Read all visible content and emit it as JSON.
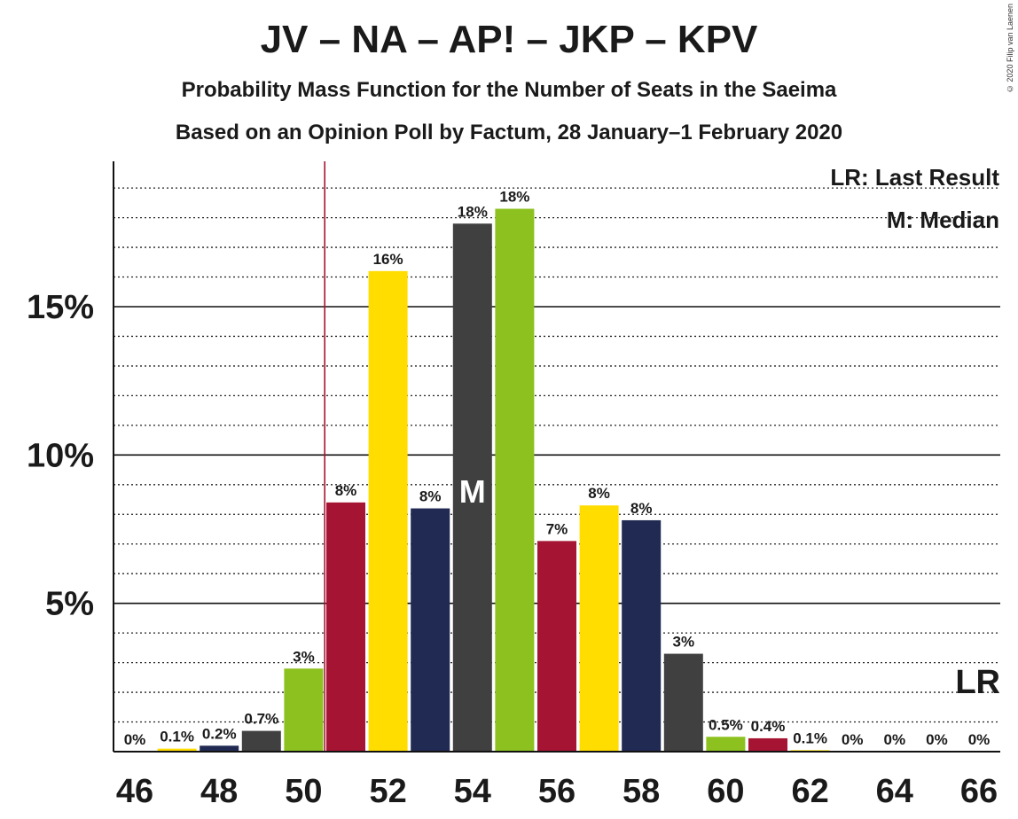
{
  "title": "JV – NA – AP! – JKP – KPV",
  "subtitle": "Probability Mass Function for the Number of Seats in the Saeima",
  "subtitle2": "Based on an Opinion Poll by Factum, 28 January–1 February 2020",
  "copyright": "© 2020 Filip van Laenen",
  "legend": {
    "lr": "LR: Last Result",
    "median": "M: Median"
  },
  "chart_data": {
    "type": "bar",
    "x": [
      46,
      47,
      48,
      49,
      50,
      51,
      52,
      53,
      54,
      55,
      56,
      57,
      58,
      59,
      60,
      61,
      62,
      63,
      64,
      65,
      66
    ],
    "values": [
      0,
      0.1,
      0.2,
      0.7,
      2.8,
      8.4,
      16.2,
      8.2,
      17.8,
      18.3,
      7.1,
      8.3,
      7.8,
      3.3,
      0.5,
      0.45,
      0.05,
      0,
      0,
      0,
      0
    ],
    "labels": [
      "0%",
      "0.1%",
      "0.2%",
      "0.7%",
      "3%",
      "8%",
      "16%",
      "8%",
      "18%",
      "18%",
      "7%",
      "8%",
      "8%",
      "3%",
      "0.5%",
      "0.4%",
      "0.1%",
      "0%",
      "0%",
      "0%",
      "0%"
    ],
    "colors": [
      "#8CC11F",
      "#FFDD00",
      "#212A53",
      "#404040",
      "#8CC11F",
      "#A51432",
      "#FFDD00",
      "#212A53",
      "#404040",
      "#8CC11F",
      "#A51432",
      "#FFDD00",
      "#212A53",
      "#404040",
      "#8CC11F",
      "#A51432",
      "#FFDD00",
      "#212A53",
      "#404040",
      "#8CC11F",
      "#A51432"
    ],
    "x_ticks": [
      46,
      48,
      50,
      52,
      54,
      56,
      58,
      60,
      62,
      64,
      66
    ],
    "y_ticks": [
      5,
      10,
      15
    ],
    "y_tick_labels": [
      "5%",
      "10%",
      "15%"
    ],
    "ylim": [
      0,
      19.9
    ],
    "last_result": 51,
    "last_result_marker": "LR",
    "median": 54,
    "median_marker": "M"
  }
}
